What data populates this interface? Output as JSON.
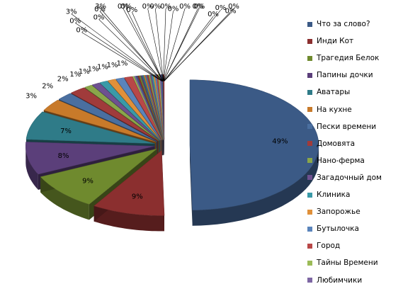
{
  "chart_data": {
    "type": "pie",
    "title": "",
    "categories": [
      "Что за слово?",
      "Инди Кот",
      "Трагедия Белок",
      "Папины дочки",
      "Аватары",
      "На кухне",
      "Пески времени",
      "Домовята",
      "Нано-ферма",
      "Загадочный дом",
      "Клиника",
      "Запорожье",
      "Бутылочка",
      "Город",
      "Тайны Времени",
      "Любимчики"
    ],
    "values": [
      49,
      9,
      9,
      8,
      7,
      3,
      2,
      2,
      1,
      1,
      1,
      1,
      1,
      1,
      0,
      0
    ],
    "data_labels": [
      "49%",
      "9%",
      "9%",
      "8%",
      "7%",
      "3%",
      "2%",
      "2%",
      "1%",
      "1%",
      "1%",
      "1%",
      "1%",
      "1%",
      "0%",
      "0%"
    ],
    "extra_slice_labels": [
      "3%",
      "3%",
      "0%",
      "0%",
      "0%",
      "0%",
      "0%",
      "0%",
      "0%",
      "0%",
      "0%",
      "0%",
      "0%",
      "0%",
      "0%",
      "0%",
      "0%",
      "0%"
    ],
    "legend_position": "right",
    "exploded": true,
    "style": "3d",
    "colors": [
      "#3b5a86",
      "#8b2f2f",
      "#6f8a2e",
      "#5b3f7a",
      "#2f7b88",
      "#c87a2a",
      "#4a6fa0",
      "#a03b3b",
      "#8aa64a",
      "#6e5190",
      "#3a9aa8",
      "#e0903a",
      "#5a84bb",
      "#b84848",
      "#9cbb58",
      "#7d66a3"
    ]
  }
}
